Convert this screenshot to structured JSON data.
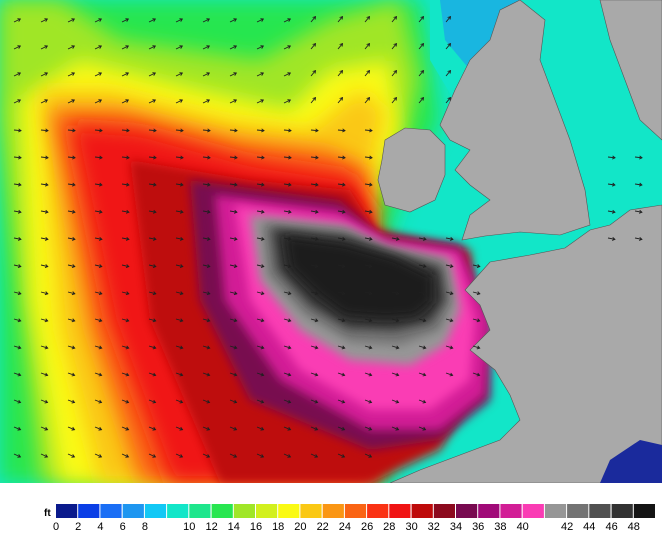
{
  "legend": {
    "unit": "ft",
    "colors": [
      "#0a1a8c",
      "#0a3ee6",
      "#1a6ef5",
      "#1e96f0",
      "#12c8f5",
      "#12e6c8",
      "#1ee68c",
      "#28e650",
      "#a0e628",
      "#d2f01e",
      "#fafa14",
      "#fac814",
      "#fa9614",
      "#fa6414",
      "#fa3214",
      "#f01414",
      "#be0a0a",
      "#8c0a1e",
      "#780a50",
      "#a00a78",
      "#d21e96",
      "#fa3cb4",
      "#969696",
      "#737373",
      "#505050",
      "#323232",
      "#141414"
    ],
    "ticks": [
      "0",
      "2",
      "4",
      "6",
      "8",
      "10",
      "12",
      "14",
      "16",
      "18",
      "20",
      "22",
      "24",
      "26",
      "28",
      "30",
      "32",
      "34",
      "36",
      "38",
      "40",
      "42",
      "44",
      "46",
      "48"
    ]
  },
  "map": {
    "land_color": "#a9a9a9",
    "coast_color": "#555555",
    "arrow_color": "#202020"
  }
}
